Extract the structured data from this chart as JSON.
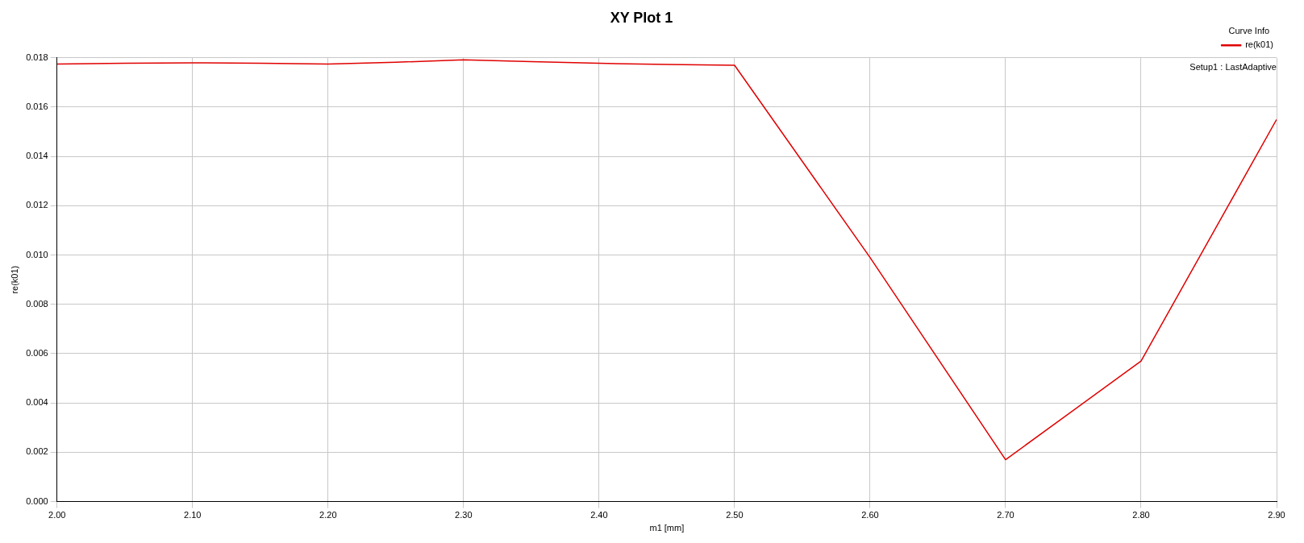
{
  "chart_data": {
    "type": "line",
    "title": "XY Plot 1",
    "xlabel": "m1 [mm]",
    "ylabel": "re(k01)",
    "legend_title": "Curve Info",
    "legend": "top right",
    "grid": true,
    "marker": "none",
    "line_style": "solid",
    "x": [
      2.0,
      2.05,
      2.1,
      2.15,
      2.2,
      2.25,
      2.3,
      2.35,
      2.4,
      2.45,
      2.5,
      2.6,
      2.7,
      2.8,
      2.9
    ],
    "series": [
      {
        "name": "re(k01)",
        "color": "#e00000",
        "values": [
          0.01775,
          0.01778,
          0.0178,
          0.01778,
          0.01775,
          0.01782,
          0.01792,
          0.01785,
          0.01778,
          0.01773,
          0.0177,
          0.0099,
          0.0017,
          0.0057,
          0.0155
        ]
      }
    ],
    "xlim": [
      2.0,
      2.9
    ],
    "xticks": [
      {
        "value": 2.0,
        "label": "2.00"
      },
      {
        "value": 2.1,
        "label": "2.10"
      },
      {
        "value": 2.2,
        "label": "2.20"
      },
      {
        "value": 2.3,
        "label": "2.30"
      },
      {
        "value": 2.4,
        "label": "2.40"
      },
      {
        "value": 2.5,
        "label": "2.50"
      },
      {
        "value": 2.6,
        "label": "2.60"
      },
      {
        "value": 2.7,
        "label": "2.70"
      },
      {
        "value": 2.8,
        "label": "2.80"
      },
      {
        "value": 2.9,
        "label": "2.90"
      }
    ],
    "ylim": [
      0,
      0.018
    ],
    "yticks": [
      {
        "value": 0,
        "label": "0.000"
      },
      {
        "value": 0.002,
        "label": "0.002"
      },
      {
        "value": 0.004,
        "label": "0.004"
      },
      {
        "value": 0.006,
        "label": "0.006"
      },
      {
        "value": 0.008,
        "label": "0.008"
      },
      {
        "value": 0.01,
        "label": "0.010"
      },
      {
        "value": 0.012,
        "label": "0.012"
      },
      {
        "value": 0.014,
        "label": "0.014"
      },
      {
        "value": 0.016,
        "label": "0.016"
      },
      {
        "value": 0.018,
        "label": "0.018"
      }
    ],
    "annotations": [
      "Setup1 : LastAdaptive"
    ]
  }
}
